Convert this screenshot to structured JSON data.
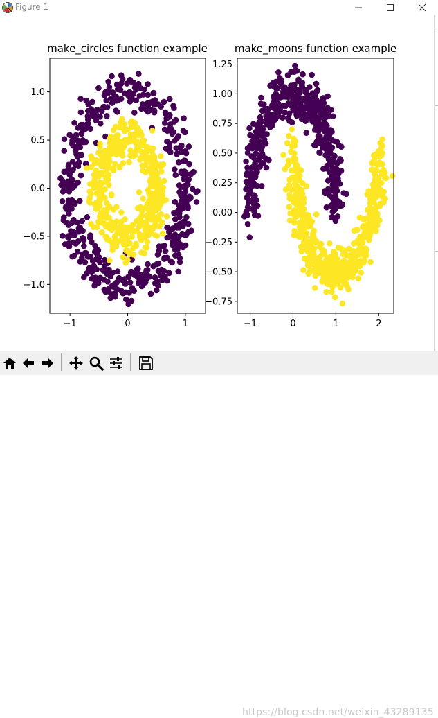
{
  "window": {
    "title": "Figure 1",
    "icons": {
      "app": "matplotlib-icon",
      "minimize": "minimize-icon",
      "maximize": "maximize-icon",
      "close": "close-icon"
    }
  },
  "chart_data": [
    {
      "type": "scatter",
      "title": "make_circles function example",
      "xlabel": "",
      "ylabel": "",
      "xlim": [
        -1.35,
        1.35
      ],
      "ylim": [
        -1.3,
        1.35
      ],
      "xticks": [
        -1,
        0,
        1
      ],
      "yticks": [
        -1.0,
        -0.5,
        0.0,
        0.5,
        1.0
      ],
      "ytick_labels": [
        "−1.0",
        "−0.5",
        "0.0",
        "0.5",
        "1.0"
      ],
      "grid": false,
      "series": [
        {
          "class": 0,
          "color": "#440154",
          "shape": "ring",
          "radius": 1.0,
          "noise": 0.1,
          "n": 500
        },
        {
          "class": 1,
          "color": "#fde725",
          "shape": "ring",
          "radius": 0.5,
          "noise": 0.1,
          "n": 500
        }
      ]
    },
    {
      "type": "scatter",
      "title": "make_moons function example",
      "xlabel": "",
      "ylabel": "",
      "xlim": [
        -1.3,
        2.35
      ],
      "ylim": [
        -0.85,
        1.3
      ],
      "xticks": [
        -1,
        0,
        1,
        2
      ],
      "yticks": [
        -0.75,
        -0.5,
        -0.25,
        0.0,
        0.25,
        0.5,
        0.75,
        1.0,
        1.25
      ],
      "ytick_labels": [
        "−0.75",
        "−0.50",
        "−0.25",
        "0.00",
        "0.25",
        "0.50",
        "0.75",
        "1.00",
        "1.25"
      ],
      "grid": false,
      "series": [
        {
          "class": 0,
          "color": "#440154",
          "shape": "upper-moon",
          "noise": 0.1,
          "n": 500
        },
        {
          "class": 1,
          "color": "#fde725",
          "shape": "lower-moon",
          "noise": 0.1,
          "n": 500
        }
      ]
    }
  ],
  "toolbar": {
    "buttons": [
      {
        "name": "home-button",
        "icon": "home-icon",
        "tooltip": "Home"
      },
      {
        "name": "back-button",
        "icon": "back-arrow-icon",
        "tooltip": "Back"
      },
      {
        "name": "forward-button",
        "icon": "forward-arrow-icon",
        "tooltip": "Forward"
      },
      {
        "name": "pan-button",
        "icon": "pan-icon",
        "tooltip": "Pan"
      },
      {
        "name": "zoom-button",
        "icon": "zoom-icon",
        "tooltip": "Zoom"
      },
      {
        "name": "subplots-button",
        "icon": "sliders-icon",
        "tooltip": "Subplots"
      },
      {
        "name": "save-button",
        "icon": "save-icon",
        "tooltip": "Save"
      }
    ]
  },
  "watermark": "https://blog.csdn.net/weixin_43289135"
}
